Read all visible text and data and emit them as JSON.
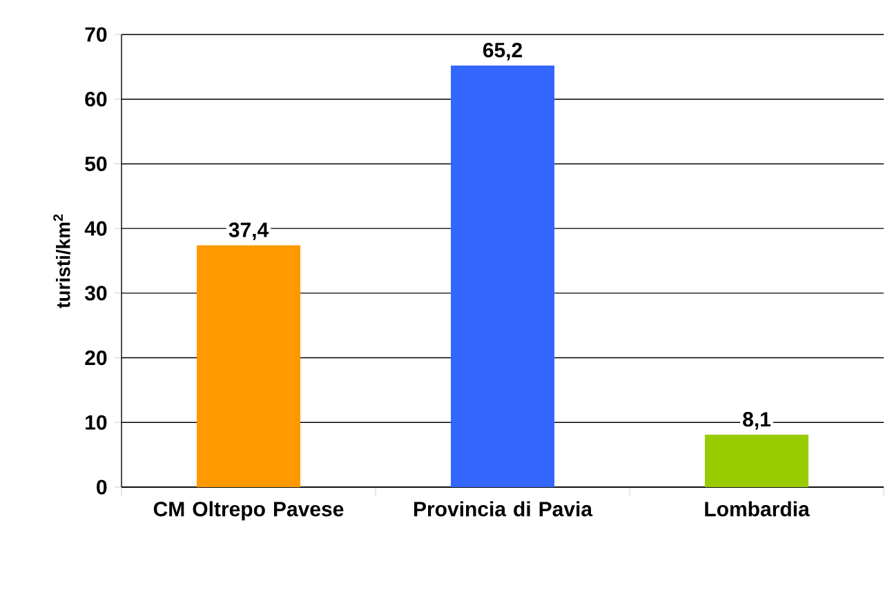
{
  "chart_data": {
    "type": "bar",
    "ylabel": "turisti/km$^{2}$",
    "categories": [
      "CM Oltrepo Pavese",
      "Provincia di Pavia",
      "Lombardia"
    ],
    "values": [
      37.4,
      65.2,
      8.1
    ],
    "value_labels": [
      "37,4",
      "65,2",
      "8,1"
    ],
    "colors": [
      "#ff9900",
      "#3366ff",
      "#99cc00"
    ],
    "ylim": [
      0,
      70
    ],
    "yticks": [
      0,
      10,
      20,
      30,
      40,
      50,
      60,
      70
    ],
    "grid": "y"
  }
}
